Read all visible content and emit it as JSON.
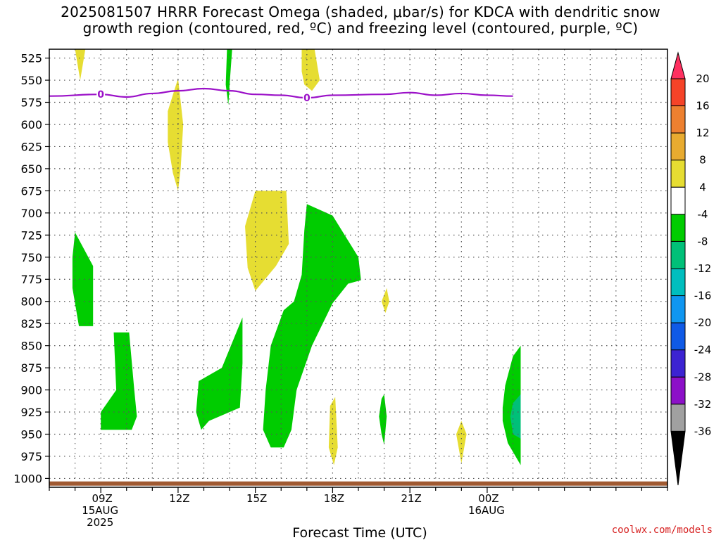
{
  "title": "2025081507 HRRR Forecast Omega (shaded, μbar/s) for KDCA with dendritic snow\ngrowth region (contoured, red, ºC) and freezing level (contoured, purple, ºC)",
  "credit": "coolwx.com/models",
  "chart_data": {
    "type": "contour",
    "title": "2025081507 HRRR Forecast Omega (shaded, μbar/s) for KDCA with dendritic snow growth region (contoured, red, ºC) and freezing level (contoured, purple, ºC)",
    "xlabel": "Forecast Time (UTC)",
    "ylabel": "",
    "x_unit": "hours after 2025-08-15 07Z",
    "xlim": [
      7,
      31
    ],
    "y_unit": "hPa",
    "ylim": [
      1010,
      515
    ],
    "y_ticks": [
      525,
      550,
      575,
      600,
      625,
      650,
      675,
      700,
      725,
      750,
      775,
      800,
      825,
      850,
      875,
      900,
      925,
      950,
      975,
      1000
    ],
    "x_ticks": [
      {
        "x": 9,
        "label": "09Z",
        "sub": [
          "15AUG",
          "2025"
        ]
      },
      {
        "x": 12,
        "label": "12Z",
        "sub": []
      },
      {
        "x": 15,
        "label": "15Z",
        "sub": []
      },
      {
        "x": 18,
        "label": "18Z",
        "sub": []
      },
      {
        "x": 21,
        "label": "21Z",
        "sub": []
      },
      {
        "x": 24,
        "label": "00Z",
        "sub": [
          "16AUG"
        ]
      }
    ],
    "grid": true,
    "colorbar": {
      "labels": [
        "20",
        "16",
        "12",
        "8",
        "4",
        "-4",
        "-8",
        "-12",
        "-16",
        "-20",
        "-24",
        "-28",
        "-32",
        "-36"
      ],
      "colors": [
        "#ff3060",
        "#f54328",
        "#ed8030",
        "#e8ab30",
        "#e6dd32",
        "#ffffff",
        "#00cc00",
        "#00c078",
        "#00bebe",
        "#0f96f0",
        "#0f5ae6",
        "#3c23d2",
        "#8c10c8",
        "#a0a0a0",
        "#000000"
      ]
    },
    "freezing_level": {
      "label": "0",
      "color": "#9b10c8",
      "points": [
        [
          7,
          568
        ],
        [
          9,
          566
        ],
        [
          10,
          569
        ],
        [
          11,
          565
        ],
        [
          12,
          562
        ],
        [
          13,
          559.5
        ],
        [
          14,
          562
        ],
        [
          15,
          566
        ],
        [
          16,
          567
        ],
        [
          17,
          570
        ],
        [
          18,
          567
        ],
        [
          20,
          566
        ],
        [
          21,
          564
        ],
        [
          22,
          567
        ],
        [
          23,
          565
        ],
        [
          24,
          567
        ],
        [
          25,
          568
        ]
      ],
      "label_x": [
        9,
        17
      ]
    },
    "surface_line": {
      "color": "#a05a32",
      "pressure": 1005
    },
    "series": [
      {
        "category": "4 to 8",
        "color": "#e6dd32",
        "polygon": [
          [
            8,
            515
          ],
          [
            8.2,
            550
          ],
          [
            8.4,
            515
          ]
        ]
      },
      {
        "category": "4 to 8",
        "color": "#e6dd32",
        "polygon": [
          [
            11.6,
            585
          ],
          [
            12,
            548
          ],
          [
            12.2,
            600
          ],
          [
            12.1,
            650
          ],
          [
            12,
            675
          ],
          [
            11.8,
            655
          ],
          [
            11.6,
            620
          ]
        ]
      },
      {
        "category": "4 to 8",
        "color": "#e6dd32",
        "polygon": [
          [
            16.8,
            515
          ],
          [
            17.3,
            515
          ],
          [
            17.5,
            550
          ],
          [
            17.2,
            562
          ],
          [
            16.9,
            555
          ],
          [
            16.8,
            540
          ]
        ]
      },
      {
        "category": "4 to 8",
        "color": "#e6dd32",
        "polygon": [
          [
            15,
            675
          ],
          [
            16.2,
            675
          ],
          [
            16.3,
            735
          ],
          [
            15.8,
            760
          ],
          [
            15,
            788
          ],
          [
            14.7,
            762
          ],
          [
            14.6,
            715
          ]
        ]
      },
      {
        "category": "4 to 8",
        "color": "#e6dd32",
        "polygon": [
          [
            20.1,
            785
          ],
          [
            20.2,
            800
          ],
          [
            20.05,
            813
          ],
          [
            19.9,
            800
          ]
        ]
      },
      {
        "category": "4 to 8",
        "color": "#e6dd32",
        "polygon": [
          [
            17.9,
            918
          ],
          [
            18.1,
            908
          ],
          [
            18.2,
            965
          ],
          [
            18.05,
            985
          ],
          [
            17.85,
            965
          ]
        ]
      },
      {
        "category": "4 to 8",
        "color": "#e6dd32",
        "polygon": [
          [
            23,
            935
          ],
          [
            23.2,
            950
          ],
          [
            23.0,
            983
          ],
          [
            22.8,
            950
          ]
        ]
      },
      {
        "category": "-4 to -8",
        "color": "#00cc00",
        "polygon": [
          [
            13.9,
            515
          ],
          [
            14.1,
            515
          ],
          [
            14.0,
            555
          ],
          [
            13.95,
            578
          ],
          [
            13.85,
            555
          ]
        ]
      },
      {
        "category": "-4 to -8",
        "color": "#00cc00",
        "polygon": [
          [
            8,
            722
          ],
          [
            8.7,
            760
          ],
          [
            8.7,
            828
          ],
          [
            8.15,
            828
          ],
          [
            7.9,
            785
          ],
          [
            7.9,
            750
          ]
        ]
      },
      {
        "category": "-4 to -8",
        "color": "#00cc00",
        "polygon": [
          [
            9.5,
            835
          ],
          [
            10.1,
            835
          ],
          [
            10.3,
            900
          ],
          [
            10.4,
            930
          ],
          [
            10.2,
            945
          ],
          [
            9.5,
            945
          ],
          [
            9,
            945
          ],
          [
            9,
            925
          ],
          [
            9.6,
            900
          ]
        ]
      },
      {
        "category": "-4 to -8",
        "color": "#00cc00",
        "polygon": [
          [
            13.7,
            875
          ],
          [
            14.5,
            818
          ],
          [
            14.5,
            870
          ],
          [
            14.4,
            920
          ],
          [
            13.2,
            935
          ],
          [
            12.9,
            945
          ],
          [
            12.7,
            925
          ],
          [
            12.8,
            890
          ]
        ]
      },
      {
        "category": "-4 to -8",
        "color": "#00cc00",
        "polygon": [
          [
            18,
            703
          ],
          [
            19,
            750
          ],
          [
            19.1,
            776
          ],
          [
            18.6,
            780
          ],
          [
            18,
            802
          ],
          [
            17.2,
            850
          ],
          [
            16.6,
            900
          ],
          [
            16.4,
            945
          ],
          [
            16.1,
            965
          ],
          [
            15.6,
            965
          ],
          [
            15.3,
            945
          ],
          [
            15.4,
            900
          ],
          [
            15.6,
            850
          ],
          [
            16.1,
            810
          ],
          [
            16.5,
            800
          ],
          [
            16.8,
            770
          ],
          [
            16.9,
            720
          ],
          [
            17.0,
            690
          ]
        ]
      },
      {
        "category": "-4 to -8",
        "color": "#00cc00",
        "polygon": [
          [
            19.9,
            910
          ],
          [
            20,
            905
          ],
          [
            20.1,
            930
          ],
          [
            20.0,
            962
          ],
          [
            19.9,
            950
          ],
          [
            19.8,
            930
          ]
        ]
      },
      {
        "category": "-4 to -8",
        "color": "#00cc00",
        "polygon": [
          [
            25.0,
            862
          ],
          [
            25.3,
            850
          ],
          [
            25.3,
            985
          ],
          [
            24.8,
            960
          ],
          [
            24.6,
            935
          ],
          [
            24.6,
            920
          ],
          [
            24.7,
            895
          ]
        ]
      },
      {
        "category": "-8 to -12",
        "color": "#00c078",
        "polygon": [
          [
            25.0,
            915
          ],
          [
            25.3,
            905
          ],
          [
            25.3,
            955
          ],
          [
            25.0,
            950
          ],
          [
            24.9,
            930
          ]
        ]
      }
    ]
  }
}
